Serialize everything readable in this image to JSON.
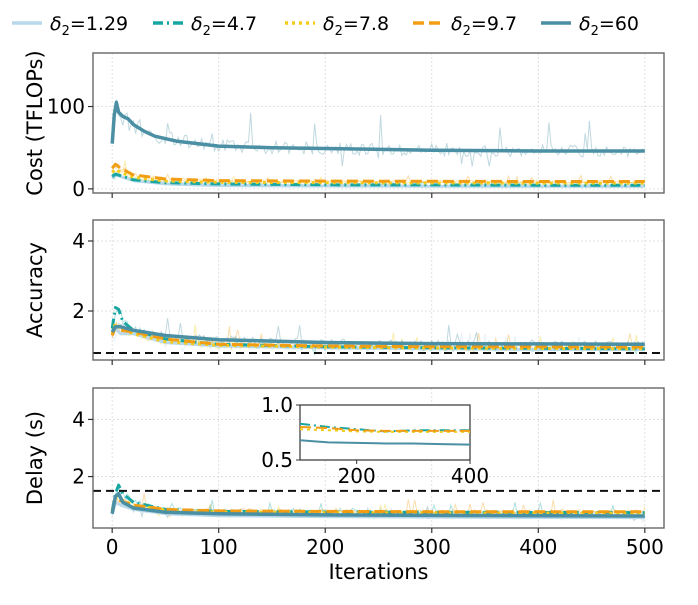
{
  "chart_data": {
    "type": "line",
    "legend": {
      "placement": "top",
      "entries": [
        {
          "series_id": "d129",
          "prefix": "δ",
          "sub": "2",
          "value": "=1.29"
        },
        {
          "series_id": "d47",
          "prefix": "δ",
          "sub": "2",
          "value": "=4.7"
        },
        {
          "series_id": "d78",
          "prefix": "δ",
          "sub": "2",
          "value": "=7.8"
        },
        {
          "series_id": "d97",
          "prefix": "δ",
          "sub": "2",
          "value": "=9.7"
        },
        {
          "series_id": "d60",
          "prefix": "δ",
          "sub": "2",
          "value": "=60"
        }
      ]
    },
    "series": [
      {
        "id": "d129",
        "name": "δ2=1.29",
        "color": "#b9d9ea",
        "dash": "solid"
      },
      {
        "id": "d47",
        "name": "δ2=4.7",
        "color": "#17a6a2",
        "dash": "dashdot"
      },
      {
        "id": "d78",
        "name": "δ2=7.8",
        "color": "#f2cc1c",
        "dash": "dotted"
      },
      {
        "id": "d97",
        "name": "δ2=9.7",
        "color": "#f29e15",
        "dash": "dashed"
      },
      {
        "id": "d60",
        "name": "δ2=60",
        "color": "#4a8fa3",
        "dash": "solid"
      }
    ],
    "xlabel": "Iterations",
    "xlim": [
      -18,
      518
    ],
    "xticks": [
      0,
      100,
      200,
      300,
      400,
      500
    ],
    "subplots": [
      {
        "id": "cost",
        "ylabel": "Cost (TFLOPs)",
        "ylim": [
          -5,
          165
        ],
        "yticks": [
          0,
          100
        ],
        "grid": true,
        "curves": {
          "d129": [
            [
              0,
              14
            ],
            [
              3,
              17
            ],
            [
              8,
              15
            ],
            [
              20,
              10
            ],
            [
              50,
              6
            ],
            [
              100,
              4
            ],
            [
              200,
              3.5
            ],
            [
              300,
              3.2
            ],
            [
              400,
              3
            ],
            [
              500,
              3
            ]
          ],
          "d47": [
            [
              0,
              15
            ],
            [
              3,
              18
            ],
            [
              8,
              16
            ],
            [
              20,
              11
            ],
            [
              50,
              7.5
            ],
            [
              100,
              6
            ],
            [
              200,
              5
            ],
            [
              300,
              4.8
            ],
            [
              400,
              4.5
            ],
            [
              500,
              4.5
            ]
          ],
          "d78": [
            [
              0,
              20
            ],
            [
              3,
              24
            ],
            [
              8,
              20
            ],
            [
              20,
              14
            ],
            [
              50,
              9.5
            ],
            [
              100,
              8
            ],
            [
              200,
              7.5
            ],
            [
              300,
              7.2
            ],
            [
              400,
              7
            ],
            [
              500,
              7
            ]
          ],
          "d97": [
            [
              0,
              25
            ],
            [
              3,
              30
            ],
            [
              8,
              25
            ],
            [
              20,
              17
            ],
            [
              50,
              12
            ],
            [
              100,
              10
            ],
            [
              200,
              9.5
            ],
            [
              300,
              9.2
            ],
            [
              400,
              9
            ],
            [
              500,
              9
            ]
          ],
          "d60": [
            [
              0,
              55
            ],
            [
              2,
              90
            ],
            [
              4,
              105
            ],
            [
              6,
              93
            ],
            [
              10,
              88
            ],
            [
              15,
              85
            ],
            [
              20,
              78
            ],
            [
              30,
              70
            ],
            [
              40,
              64
            ],
            [
              60,
              58
            ],
            [
              80,
              55
            ],
            [
              100,
              52
            ],
            [
              150,
              50
            ],
            [
              200,
              49
            ],
            [
              300,
              47
            ],
            [
              400,
              46
            ],
            [
              500,
              46
            ]
          ]
        },
        "noise_amp": 0.9,
        "reference_line": null
      },
      {
        "id": "accuracy",
        "ylabel": "Accuracy",
        "ylim": [
          0.6,
          4.6
        ],
        "yticks": [
          2,
          4
        ],
        "grid": true,
        "curves": {
          "d129": [
            [
              0,
              1.3
            ],
            [
              3,
              1.5
            ],
            [
              8,
              1.35
            ],
            [
              20,
              1.35
            ],
            [
              50,
              1.1
            ],
            [
              100,
              1.0
            ],
            [
              200,
              0.95
            ],
            [
              300,
              0.92
            ],
            [
              400,
              0.9
            ],
            [
              500,
              0.9
            ]
          ],
          "d47": [
            [
              0,
              1.5
            ],
            [
              3,
              2.1
            ],
            [
              6,
              2.05
            ],
            [
              10,
              1.7
            ],
            [
              20,
              1.45
            ],
            [
              50,
              1.2
            ],
            [
              100,
              1.05
            ],
            [
              200,
              0.98
            ],
            [
              300,
              0.95
            ],
            [
              500,
              0.92
            ]
          ],
          "d78": [
            [
              0,
              1.35
            ],
            [
              3,
              1.65
            ],
            [
              8,
              1.5
            ],
            [
              20,
              1.35
            ],
            [
              50,
              1.12
            ],
            [
              100,
              1.02
            ],
            [
              200,
              0.97
            ],
            [
              300,
              0.94
            ],
            [
              500,
              0.92
            ]
          ],
          "d97": [
            [
              0,
              1.3
            ],
            [
              3,
              1.55
            ],
            [
              8,
              1.45
            ],
            [
              20,
              1.4
            ],
            [
              50,
              1.2
            ],
            [
              100,
              1.05
            ],
            [
              200,
              1.0
            ],
            [
              300,
              0.98
            ],
            [
              500,
              0.97
            ]
          ],
          "d60": [
            [
              0,
              1.4
            ],
            [
              3,
              1.55
            ],
            [
              8,
              1.55
            ],
            [
              20,
              1.45
            ],
            [
              50,
              1.3
            ],
            [
              100,
              1.18
            ],
            [
              200,
              1.1
            ],
            [
              300,
              1.07
            ],
            [
              400,
              1.06
            ],
            [
              500,
              1.05
            ]
          ]
        },
        "noise_amp": 0.5,
        "reference_line": 0.8
      },
      {
        "id": "delay",
        "ylabel": "Delay (s)",
        "ylim": [
          0.2,
          5.1
        ],
        "yticks": [
          2,
          4
        ],
        "grid": true,
        "curves": {
          "d129": [
            [
              0,
              0.7
            ],
            [
              3,
              1.1
            ],
            [
              8,
              1.0
            ],
            [
              20,
              0.85
            ],
            [
              50,
              0.7
            ],
            [
              100,
              0.63
            ],
            [
              200,
              0.6
            ],
            [
              300,
              0.58
            ],
            [
              500,
              0.56
            ]
          ],
          "d47": [
            [
              0,
              0.8
            ],
            [
              3,
              1.4
            ],
            [
              6,
              1.7
            ],
            [
              10,
              1.4
            ],
            [
              20,
              1.1
            ],
            [
              50,
              0.85
            ],
            [
              100,
              0.78
            ],
            [
              200,
              0.76
            ],
            [
              300,
              0.75
            ],
            [
              500,
              0.74
            ]
          ],
          "d78": [
            [
              0,
              0.8
            ],
            [
              3,
              1.3
            ],
            [
              8,
              1.2
            ],
            [
              20,
              1.0
            ],
            [
              50,
              0.82
            ],
            [
              100,
              0.76
            ],
            [
              200,
              0.74
            ],
            [
              300,
              0.73
            ],
            [
              500,
              0.72
            ]
          ],
          "d97": [
            [
              0,
              0.8
            ],
            [
              3,
              1.2
            ],
            [
              8,
              1.15
            ],
            [
              20,
              1.0
            ],
            [
              50,
              0.85
            ],
            [
              100,
              0.8
            ],
            [
              200,
              0.78
            ],
            [
              300,
              0.77
            ],
            [
              500,
              0.77
            ]
          ],
          "d60": [
            [
              0,
              0.7
            ],
            [
              3,
              1.3
            ],
            [
              6,
              1.4
            ],
            [
              10,
              1.1
            ],
            [
              20,
              0.9
            ],
            [
              50,
              0.75
            ],
            [
              100,
              0.7
            ],
            [
              200,
              0.66
            ],
            [
              300,
              0.64
            ],
            [
              500,
              0.62
            ]
          ]
        },
        "noise_amp": 0.55,
        "reference_line": 1.5,
        "inset": {
          "xlim": [
            100,
            400
          ],
          "ylim": [
            0.5,
            1.0
          ],
          "xticks": [
            200,
            400
          ],
          "yticks": [
            0.5,
            1.0
          ],
          "ytick_labels": [
            "0.5",
            "1.0"
          ],
          "curves": {
            "d47": [
              [
                100,
                0.83
              ],
              [
                150,
                0.8
              ],
              [
                200,
                0.78
              ],
              [
                250,
                0.76
              ],
              [
                300,
                0.77
              ],
              [
                350,
                0.77
              ],
              [
                400,
                0.77
              ]
            ],
            "d78": [
              [
                100,
                0.78
              ],
              [
                150,
                0.77
              ],
              [
                200,
                0.76
              ],
              [
                250,
                0.755
              ],
              [
                300,
                0.755
              ],
              [
                350,
                0.755
              ],
              [
                400,
                0.755
              ]
            ],
            "d97": [
              [
                100,
                0.8
              ],
              [
                150,
                0.79
              ],
              [
                200,
                0.77
              ],
              [
                250,
                0.765
              ],
              [
                300,
                0.765
              ],
              [
                350,
                0.765
              ],
              [
                400,
                0.765
              ]
            ],
            "d60": [
              [
                100,
                0.68
              ],
              [
                150,
                0.66
              ],
              [
                200,
                0.655
              ],
              [
                250,
                0.65
              ],
              [
                300,
                0.65
              ],
              [
                350,
                0.645
              ],
              [
                400,
                0.64
              ]
            ]
          }
        }
      }
    ]
  }
}
